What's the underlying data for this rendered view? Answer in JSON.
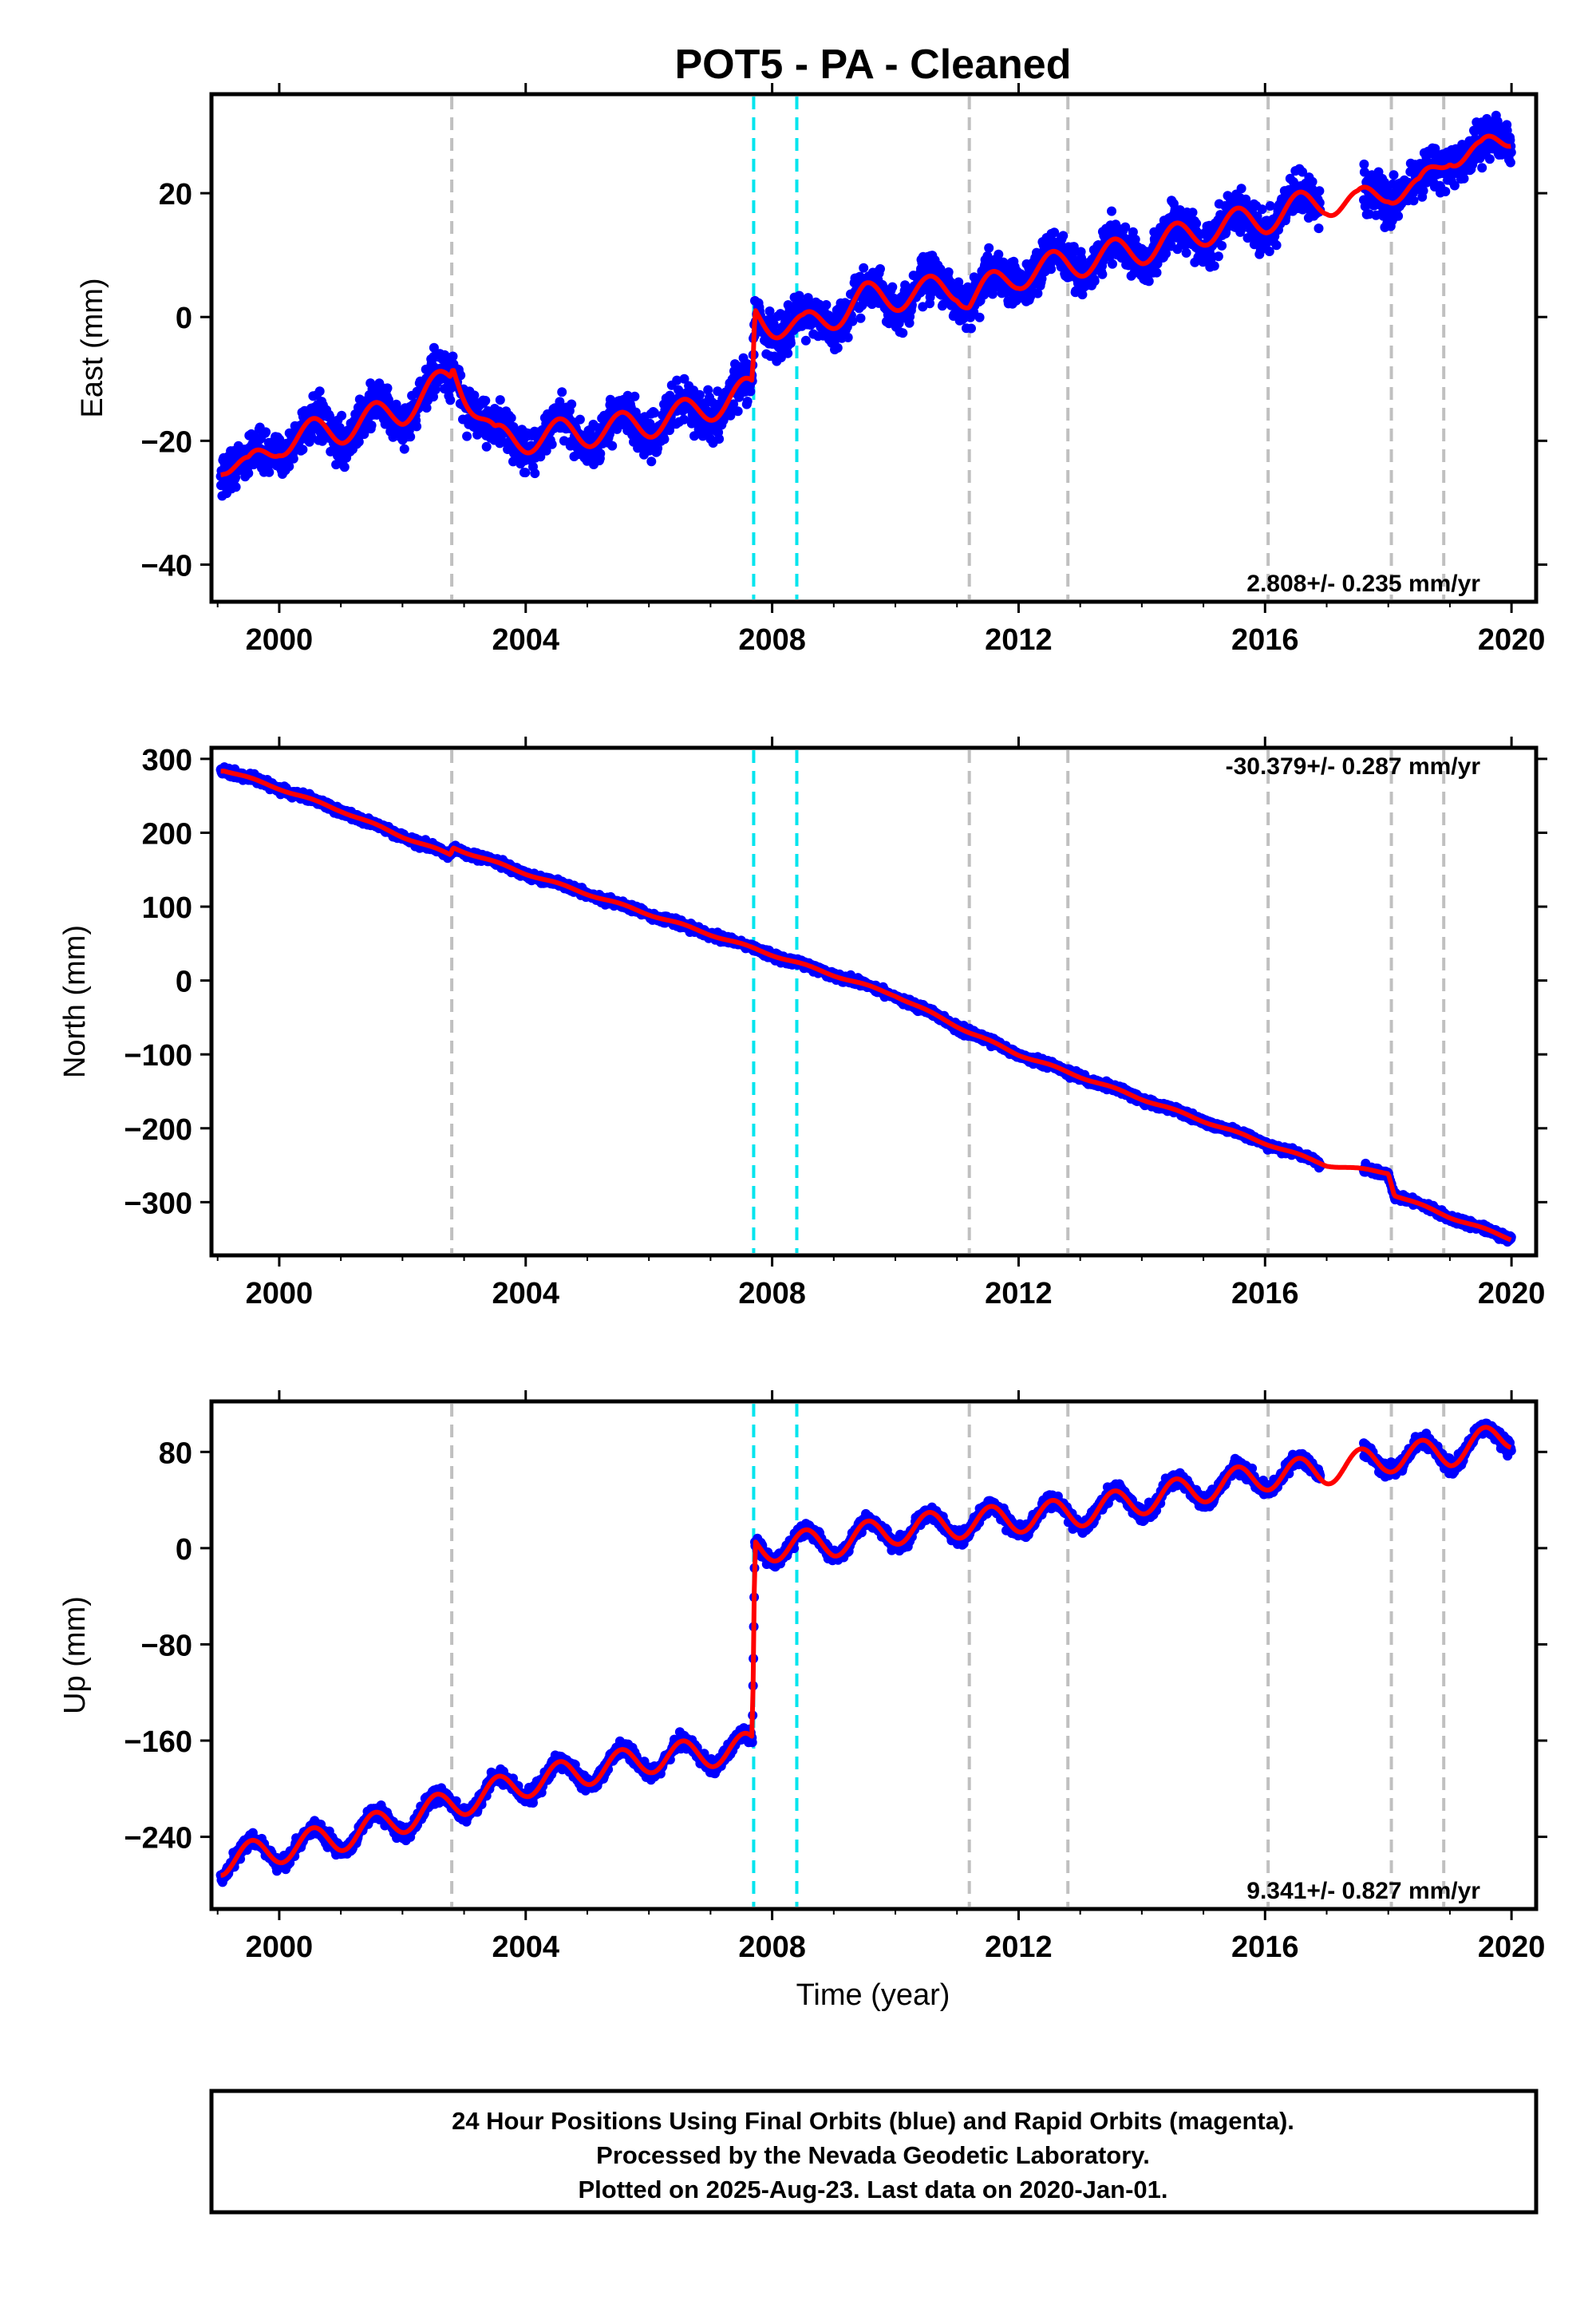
{
  "title": "POT5  - PA - Cleaned",
  "colors": {
    "observations": "#0000ff",
    "model": "#ff0000",
    "antenna_change_lines": "#c0c0c0",
    "earthquake_lines": "#00e5ee",
    "frame": "#000000"
  },
  "offset_lines": {
    "gray": [
      2002.8,
      2011.2,
      2012.8,
      2016.05,
      2018.05,
      2018.9
    ],
    "cyan": [
      2007.7,
      2008.4
    ]
  },
  "x_axis": {
    "label": "Time (year)",
    "range": [
      1998.9,
      2020.4
    ],
    "ticks": [
      2000,
      2004,
      2008,
      2012,
      2016,
      2020
    ],
    "tick_labels": [
      "2000",
      "2004",
      "2008",
      "2012",
      "2016",
      "2020"
    ]
  },
  "panels": [
    {
      "id": "east",
      "ylabel": "East (mm)",
      "ylim": [
        -46,
        36
      ],
      "yticks": [
        20,
        0,
        -20,
        -40
      ],
      "ytick_labels": [
        "20",
        "0",
        "−20",
        "−40"
      ],
      "rate": "2.808+/- 0.235 mm/yr",
      "rate_position": "bottom-right"
    },
    {
      "id": "north",
      "ylabel": "North (mm)",
      "ylim": [
        -372,
        315
      ],
      "yticks": [
        300,
        200,
        100,
        0,
        -100,
        -200,
        -300
      ],
      "ytick_labels": [
        "300",
        "200",
        "100",
        "0",
        "−100",
        "−200",
        "−300"
      ],
      "rate": "-30.379+/- 0.287 mm/yr",
      "rate_position": "top-right"
    },
    {
      "id": "up",
      "ylabel": "Up (mm)",
      "ylim": [
        -300,
        122
      ],
      "yticks": [
        80,
        0,
        -80,
        -160,
        -240
      ],
      "ytick_labels": [
        "80",
        "0",
        "−80",
        "−160",
        "−240"
      ],
      "rate": "9.341+/- 0.827 mm/yr",
      "rate_position": "bottom-right"
    }
  ],
  "chart_data": [
    {
      "type": "scatter",
      "title": "POT5  - PA - Cleaned",
      "xlabel": "",
      "ylabel": "East (mm)",
      "xlim": [
        1998.9,
        2020.4
      ],
      "ylim": [
        -46,
        36
      ],
      "time_span": [
        1999.05,
        2020.0
      ],
      "series": [
        {
          "x": [
            1999.1,
            1999.5,
            2000.0,
            2001.0,
            2002.0,
            2002.78,
            2002.82,
            2003.5,
            2004.5,
            2005.5,
            2006.5,
            2007.68,
            2007.72,
            2008.5,
            2009.5,
            2010.5,
            2011.0,
            2011.2,
            2012.0,
            2013.0,
            2014.0,
            2015.0,
            2016.0,
            2017.0,
            2017.5,
            2018.0,
            2018.5,
            2019.0,
            2019.5,
            2020.0
          ],
          "y": [
            -23,
            -25,
            -20,
            -18,
            -15,
            -10,
            -8,
            -20,
            -19,
            -18,
            -16,
            -12,
            0,
            -2,
            3,
            4,
            5,
            3,
            7,
            9,
            11,
            14,
            16,
            19,
            18,
            21,
            20,
            27,
            26,
            30
          ]
        },
        {
          "x": [
            1999.1,
            1999.5,
            2000.0,
            2001.0,
            2002.0,
            2002.78,
            2002.82,
            2003.5,
            2004.5,
            2005.5,
            2006.5,
            2007.68,
            2007.72,
            2008.5,
            2009.5,
            2010.5,
            2011.0,
            2011.2,
            2012.0,
            2013.0,
            2014.0,
            2015.0,
            2016.0,
            2017.0,
            2017.5,
            2018.0,
            2018.5,
            2019.0,
            2019.5,
            2020.0
          ],
          "y": [
            -23,
            -25,
            -20,
            -18,
            -15,
            -10,
            -8,
            -20,
            -19,
            -18,
            -16,
            -12,
            0,
            -2,
            3,
            4,
            5,
            3,
            7,
            9,
            11,
            14,
            16,
            19,
            18,
            21,
            20,
            27,
            26,
            30
          ]
        }
      ]
    },
    {
      "type": "scatter",
      "title": "",
      "xlabel": "",
      "ylabel": "North (mm)",
      "xlim": [
        1998.9,
        2020.4
      ],
      "ylim": [
        -372,
        315
      ],
      "time_span": [
        1999.05,
        2020.0
      ],
      "series": [
        {
          "x": [
            1999.1,
            2000.0,
            2001.0,
            2002.0,
            2002.78,
            2002.82,
            2004.0,
            2006.0,
            2008.0,
            2010.0,
            2011.2,
            2012.0,
            2014.0,
            2016.0,
            2017.0,
            2018.0,
            2018.1,
            2019.0,
            2020.0
          ],
          "y": [
            285,
            260,
            230,
            195,
            170,
            180,
            145,
            90,
            35,
            -20,
            -70,
            -100,
            -160,
            -220,
            -250,
            -260,
            -290,
            -320,
            -350
          ]
        },
        {
          "x": [
            1999.1,
            2000.0,
            2001.0,
            2002.0,
            2002.78,
            2002.82,
            2004.0,
            2006.0,
            2008.0,
            2010.0,
            2011.2,
            2012.0,
            2014.0,
            2016.0,
            2017.0,
            2018.0,
            2018.1,
            2019.0,
            2020.0
          ],
          "y": [
            285,
            260,
            230,
            195,
            170,
            180,
            145,
            90,
            35,
            -20,
            -70,
            -100,
            -160,
            -220,
            -250,
            -260,
            -290,
            -320,
            -350
          ]
        }
      ]
    },
    {
      "type": "scatter",
      "title": "",
      "xlabel": "Time (year)",
      "ylabel": "Up (mm)",
      "xlim": [
        1998.9,
        2020.4
      ],
      "ylim": [
        -300,
        122
      ],
      "time_span": [
        1999.05,
        2020.0
      ],
      "series": [
        {
          "x": [
            1999.1,
            2000.0,
            2001.0,
            2002.0,
            2003.0,
            2004.0,
            2005.0,
            2006.0,
            2007.0,
            2007.68,
            2007.72,
            2009.0,
            2010.0,
            2011.0,
            2012.0,
            2013.0,
            2014.0,
            2015.0,
            2016.0,
            2017.0,
            2018.0,
            2019.0,
            2020.0
          ],
          "y": [
            -260,
            -250,
            -240,
            -225,
            -210,
            -195,
            -185,
            -175,
            -170,
            -165,
            0,
            5,
            15,
            20,
            25,
            30,
            40,
            50,
            60,
            65,
            75,
            80,
            95
          ]
        },
        {
          "x": [
            1999.1,
            2000.0,
            2001.0,
            2002.0,
            2003.0,
            2004.0,
            2005.0,
            2006.0,
            2007.0,
            2007.68,
            2007.72,
            2009.0,
            2010.0,
            2011.0,
            2012.0,
            2013.0,
            2014.0,
            2015.0,
            2016.0,
            2017.0,
            2018.0,
            2019.0,
            2020.0
          ],
          "y": [
            -260,
            -250,
            -240,
            -225,
            -210,
            -195,
            -185,
            -175,
            -170,
            -165,
            0,
            5,
            15,
            20,
            25,
            30,
            40,
            50,
            60,
            65,
            75,
            80,
            95
          ]
        }
      ]
    }
  ],
  "footer": {
    "line1": "24 Hour Positions Using Final Orbits (blue) and Rapid Orbits (magenta).",
    "line2": "Processed by the Nevada Geodetic Laboratory.",
    "line3": "Plotted on 2025-Aug-23. Last data on 2020-Jan-01."
  }
}
